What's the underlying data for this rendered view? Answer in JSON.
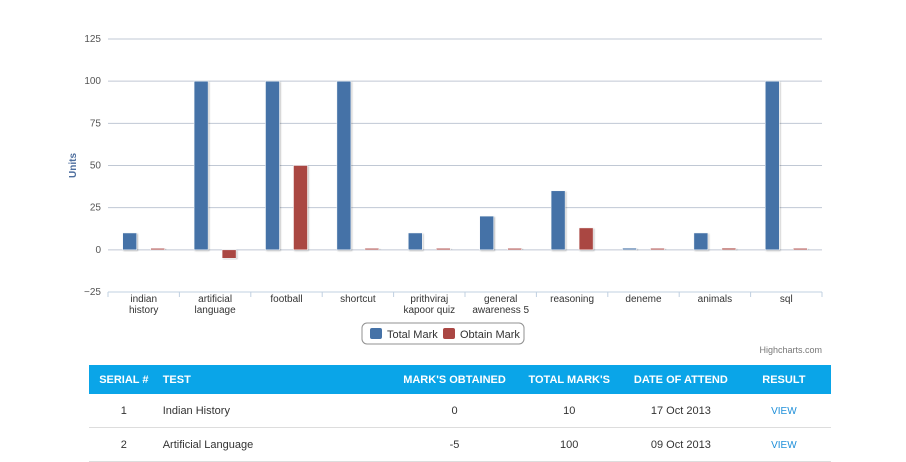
{
  "chart_data": {
    "type": "bar",
    "categories": [
      [
        "indian",
        "history"
      ],
      [
        "artificial",
        "language"
      ],
      [
        "football"
      ],
      [
        "shortcut"
      ],
      [
        "prithviraj",
        "kapoor quiz"
      ],
      [
        "general",
        "awareness 5"
      ],
      [
        "reasoning"
      ],
      [
        "deneme"
      ],
      [
        "animals"
      ],
      [
        "sql"
      ]
    ],
    "series": [
      {
        "name": "Total Mark",
        "values": [
          10,
          100,
          100,
          100,
          10,
          20,
          35,
          1,
          10,
          100
        ],
        "color": "#4572a7"
      },
      {
        "name": "Obtain Mark",
        "values": [
          0,
          -5,
          50,
          0,
          0,
          0,
          13,
          0,
          1,
          0
        ],
        "color": "#aa4643"
      }
    ],
    "ylabel": "Units",
    "ylim": [
      -25,
      125
    ],
    "yticks": [
      125,
      100,
      75,
      50,
      25,
      0,
      -25
    ],
    "ytick_labels": [
      "125",
      "100",
      "75",
      "50",
      "25",
      "0",
      "−25"
    ],
    "grid": true,
    "legend": "bottom-center",
    "credits": "Highcharts.com"
  },
  "table": {
    "headers": [
      "SERIAL #",
      "TEST",
      "MARK'S OBTAINED",
      "TOTAL MARK'S",
      "DATE OF ATTEND",
      "RESULT"
    ],
    "rows": [
      {
        "serial": "1",
        "test": "Indian History",
        "obtained": "0",
        "total": "10",
        "date": "17 Oct 2013",
        "result": "VIEW"
      },
      {
        "serial": "2",
        "test": "Artificial Language",
        "obtained": "-5",
        "total": "100",
        "date": "09 Oct 2013",
        "result": "VIEW"
      }
    ]
  }
}
